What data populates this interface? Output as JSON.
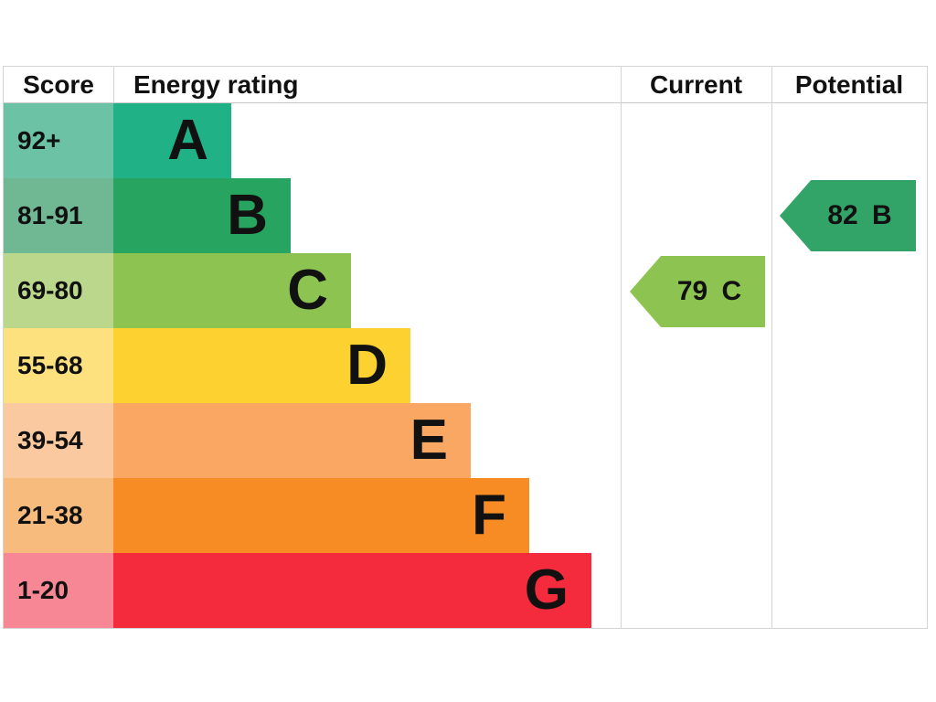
{
  "header": {
    "score": "Score",
    "energy_rating": "Energy rating",
    "current": "Current",
    "potential": "Potential"
  },
  "bands": [
    {
      "score": "92+",
      "letter": "A",
      "band_color": "#20b286",
      "score_color": "#6cc2a4"
    },
    {
      "score": "81-91",
      "letter": "B",
      "band_color": "#27a45f",
      "score_color": "#70b793"
    },
    {
      "score": "69-80",
      "letter": "C",
      "band_color": "#8dc351",
      "score_color": "#bad78c"
    },
    {
      "score": "55-68",
      "letter": "D",
      "band_color": "#fdd130",
      "score_color": "#fde17f"
    },
    {
      "score": "39-54",
      "letter": "E",
      "band_color": "#faa763",
      "score_color": "#fbc9a0"
    },
    {
      "score": "21-38",
      "letter": "F",
      "band_color": "#f68c23",
      "score_color": "#f7bb7d"
    },
    {
      "score": "1-20",
      "letter": "G",
      "band_color": "#f42a3d",
      "score_color": "#f78795"
    }
  ],
  "current": {
    "label": "79 C",
    "color": "#8dc351"
  },
  "potential": {
    "label": "82 B",
    "color": "#32a467"
  },
  "chart_data": {
    "type": "bar",
    "title": "EPC energy efficiency rating chart",
    "categories": [
      "A",
      "B",
      "C",
      "D",
      "E",
      "F",
      "G"
    ],
    "score_ranges": [
      "92+",
      "81-91",
      "69-80",
      "55-68",
      "39-54",
      "21-38",
      "1-20"
    ],
    "band_colors": [
      "#20b286",
      "#27a45f",
      "#8dc351",
      "#fdd130",
      "#faa763",
      "#f68c23",
      "#f42a3d"
    ],
    "bar_relative_lengths": [
      129,
      194,
      260,
      325,
      391,
      455,
      523
    ],
    "columns": [
      "Score",
      "Energy rating",
      "Current",
      "Potential"
    ],
    "markers": [
      {
        "column": "Current",
        "value": 79,
        "band": "C",
        "color": "#8dc351"
      },
      {
        "column": "Potential",
        "value": 82,
        "band": "B",
        "color": "#32a467"
      }
    ]
  }
}
